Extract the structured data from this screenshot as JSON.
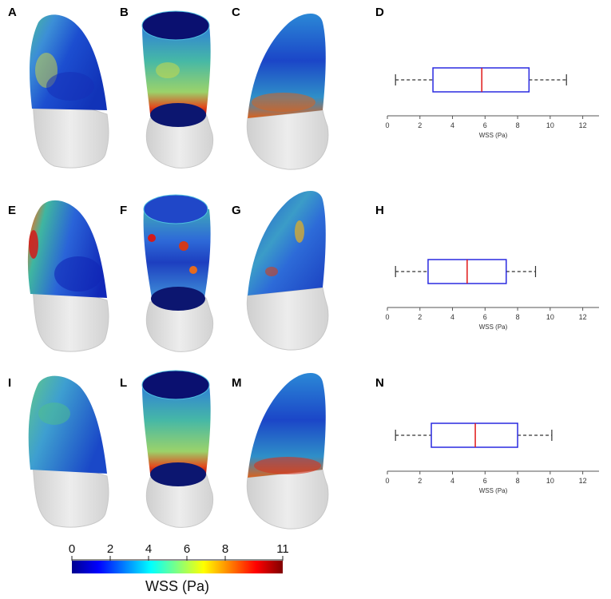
{
  "panels": [
    "A",
    "B",
    "C",
    "D",
    "E",
    "F",
    "G",
    "H",
    "I",
    "L",
    "M",
    "N"
  ],
  "colors": {
    "box": "#2a2ae0",
    "median": "#e01818",
    "whisker": "#333333",
    "axis": "#555555",
    "mesh": "#d9d9d9"
  },
  "colormap": [
    "#00008f",
    "#0000ff",
    "#0080ff",
    "#00ffff",
    "#80ff80",
    "#ffff00",
    "#ff8000",
    "#ff0000",
    "#800000"
  ],
  "colorbar": {
    "label": "WSS (Pa)",
    "min": 0,
    "max": 11,
    "ticks": [
      0,
      2,
      4,
      6,
      8,
      11
    ]
  },
  "chart_data": [
    {
      "type": "box",
      "panel": "D",
      "orientation": "horizontal",
      "xlabel": "WSS (Pa)",
      "xlim": [
        0,
        13
      ],
      "xticks": [
        0,
        2,
        4,
        6,
        8,
        10,
        12
      ],
      "whisker_low": 0.5,
      "q1": 2.8,
      "median": 5.8,
      "q3": 8.7,
      "whisker_high": 11.0
    },
    {
      "type": "box",
      "panel": "H",
      "orientation": "horizontal",
      "xlabel": "WSS (Pa)",
      "xlim": [
        0,
        13
      ],
      "xticks": [
        0,
        2,
        4,
        6,
        8,
        10,
        12
      ],
      "whisker_low": 0.5,
      "q1": 2.5,
      "median": 4.9,
      "q3": 7.3,
      "whisker_high": 9.1
    },
    {
      "type": "box",
      "panel": "N",
      "orientation": "horizontal",
      "xlabel": "WSS (Pa)",
      "xlim": [
        0,
        13
      ],
      "xticks": [
        0,
        2,
        4,
        6,
        8,
        10,
        12
      ],
      "whisker_low": 0.5,
      "q1": 2.7,
      "median": 5.4,
      "q3": 8.0,
      "whisker_high": 10.1
    }
  ]
}
